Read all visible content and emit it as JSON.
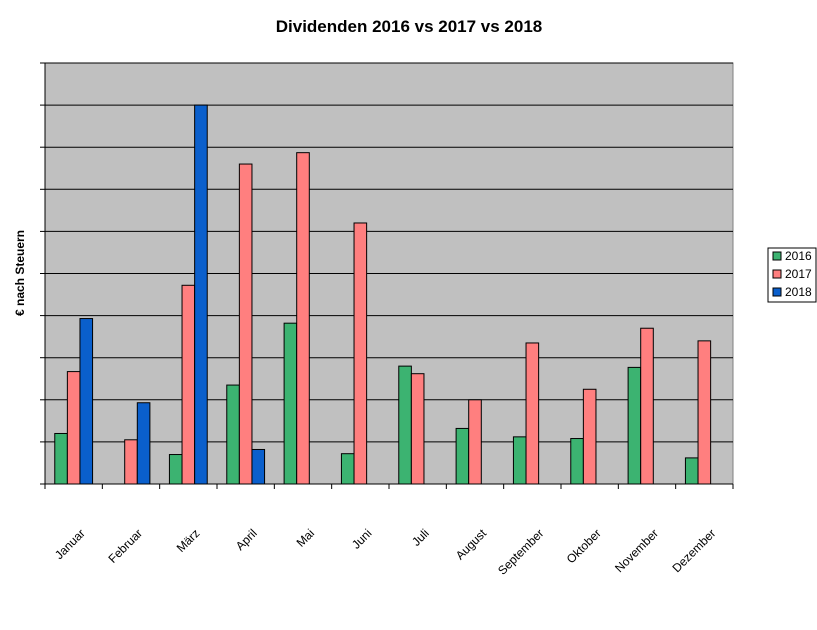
{
  "chart_data": {
    "type": "bar",
    "title": "Dividenden 2016 vs 2017 vs 2018",
    "xlabel": "",
    "ylabel": "€ nach Steuern",
    "categories": [
      "Januar",
      "Februar",
      "März",
      "April",
      "Mai",
      "Juni",
      "Juli",
      "August",
      "September",
      "Oktober",
      "November",
      "Dezember"
    ],
    "ylim": [
      0,
      10
    ],
    "y_tick_labels_shown": false,
    "grid": true,
    "legend_position": "right",
    "series": [
      {
        "name": "2016",
        "color": "#3cb371",
        "values": [
          1.2,
          null,
          0.7,
          2.35,
          3.82,
          0.72,
          2.8,
          1.32,
          1.12,
          1.08,
          2.77,
          0.62
        ]
      },
      {
        "name": "2017",
        "color": "#ff7f7f",
        "values": [
          2.67,
          1.05,
          4.72,
          7.6,
          7.87,
          6.2,
          2.62,
          2.0,
          3.35,
          2.25,
          3.7,
          3.4
        ]
      },
      {
        "name": "2018",
        "color": "#0a5fcc",
        "values": [
          3.93,
          1.93,
          9.0,
          0.82,
          null,
          null,
          null,
          null,
          null,
          null,
          null,
          null
        ]
      }
    ]
  }
}
